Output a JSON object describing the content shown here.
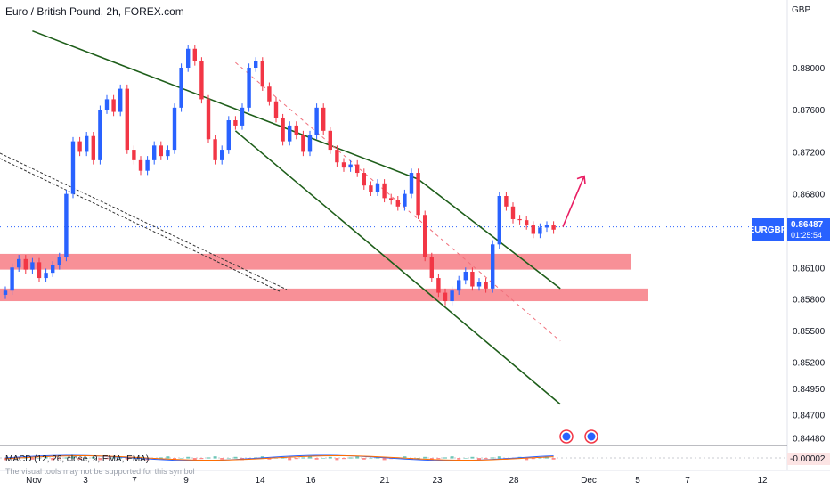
{
  "header": {
    "title": "Euro / British Pound, 2h, FOREX.com",
    "currency": "GBP"
  },
  "symbol_tag": {
    "symbol": "EURGBP",
    "price": "0.86487",
    "countdown": "01:25:54"
  },
  "macd": {
    "label": "MACD (12, 26, close, 9, EMA, EMA)",
    "note": "The visual tools may not be supported for this symbol",
    "value": "-0.00002"
  },
  "colors": {
    "up_candle": "#2962ff",
    "down_candle": "#f23645",
    "channel": "#1e5e1a",
    "zone": "#f77c85",
    "arrow": "#e91e63",
    "price_line": "#2962ff"
  },
  "chart_data": {
    "type": "line",
    "subtype": "candlestick",
    "title": "Euro / British Pound, 2h, FOREX.com",
    "y_unit": "GBP",
    "ylim": [
      0.844,
      0.883
    ],
    "y_ticks": [
      "0.88000",
      "0.87600",
      "0.87200",
      "0.86800",
      "0.86487",
      "0.86100",
      "0.85800",
      "0.85500",
      "0.85200",
      "0.84950",
      "0.84700",
      "0.84480"
    ],
    "x_ticks": [
      "Nov",
      "3",
      "7",
      "9",
      "14",
      "16",
      "21",
      "23",
      "28",
      "Dec",
      "5",
      "7",
      "12"
    ],
    "last_price": 0.86487,
    "series": [
      {
        "values": [
          0.8588,
          0.861,
          0.8618,
          0.8608,
          0.8615,
          0.86,
          0.8605,
          0.8612,
          0.862,
          0.868,
          0.873,
          0.872,
          0.8735,
          0.8712,
          0.876,
          0.877,
          0.8758,
          0.878,
          0.8722,
          0.8712,
          0.8702,
          0.8712,
          0.8726,
          0.8716,
          0.8722,
          0.8762,
          0.88,
          0.8818,
          0.8806,
          0.877,
          0.8732,
          0.8712,
          0.8722,
          0.875,
          0.8745,
          0.8762,
          0.88,
          0.8806,
          0.8782,
          0.8768,
          0.8752,
          0.873,
          0.8745,
          0.8736,
          0.872,
          0.8736,
          0.8762,
          0.874,
          0.8722,
          0.871,
          0.8705,
          0.8708,
          0.87,
          0.8688,
          0.8682,
          0.869,
          0.8676,
          0.8674,
          0.8668,
          0.868,
          0.87,
          0.866,
          0.862,
          0.86,
          0.8586,
          0.8578,
          0.8588,
          0.8598,
          0.8606,
          0.8592,
          0.8596,
          0.859,
          0.8632,
          0.8678,
          0.8668,
          0.8656,
          0.8655,
          0.865,
          0.8642,
          0.8648,
          0.865,
          0.8646
        ]
      }
    ],
    "annotations": {
      "channel_upper": [
        [
          0.8835,
          4
        ],
        [
          0.8694,
          61
        ],
        [
          0.859,
          82
        ]
      ],
      "channel_lower": [
        [
          0.874,
          34
        ],
        [
          0.848,
          82
        ]
      ],
      "channel_midline": [
        [
          0.8805,
          34
        ],
        [
          0.854,
          82
        ]
      ],
      "support_zone_1": [
        0.8608,
        0.8623
      ],
      "support_zone_2": [
        0.8578,
        0.859
      ],
      "arrow_to": 0.8697
    }
  }
}
